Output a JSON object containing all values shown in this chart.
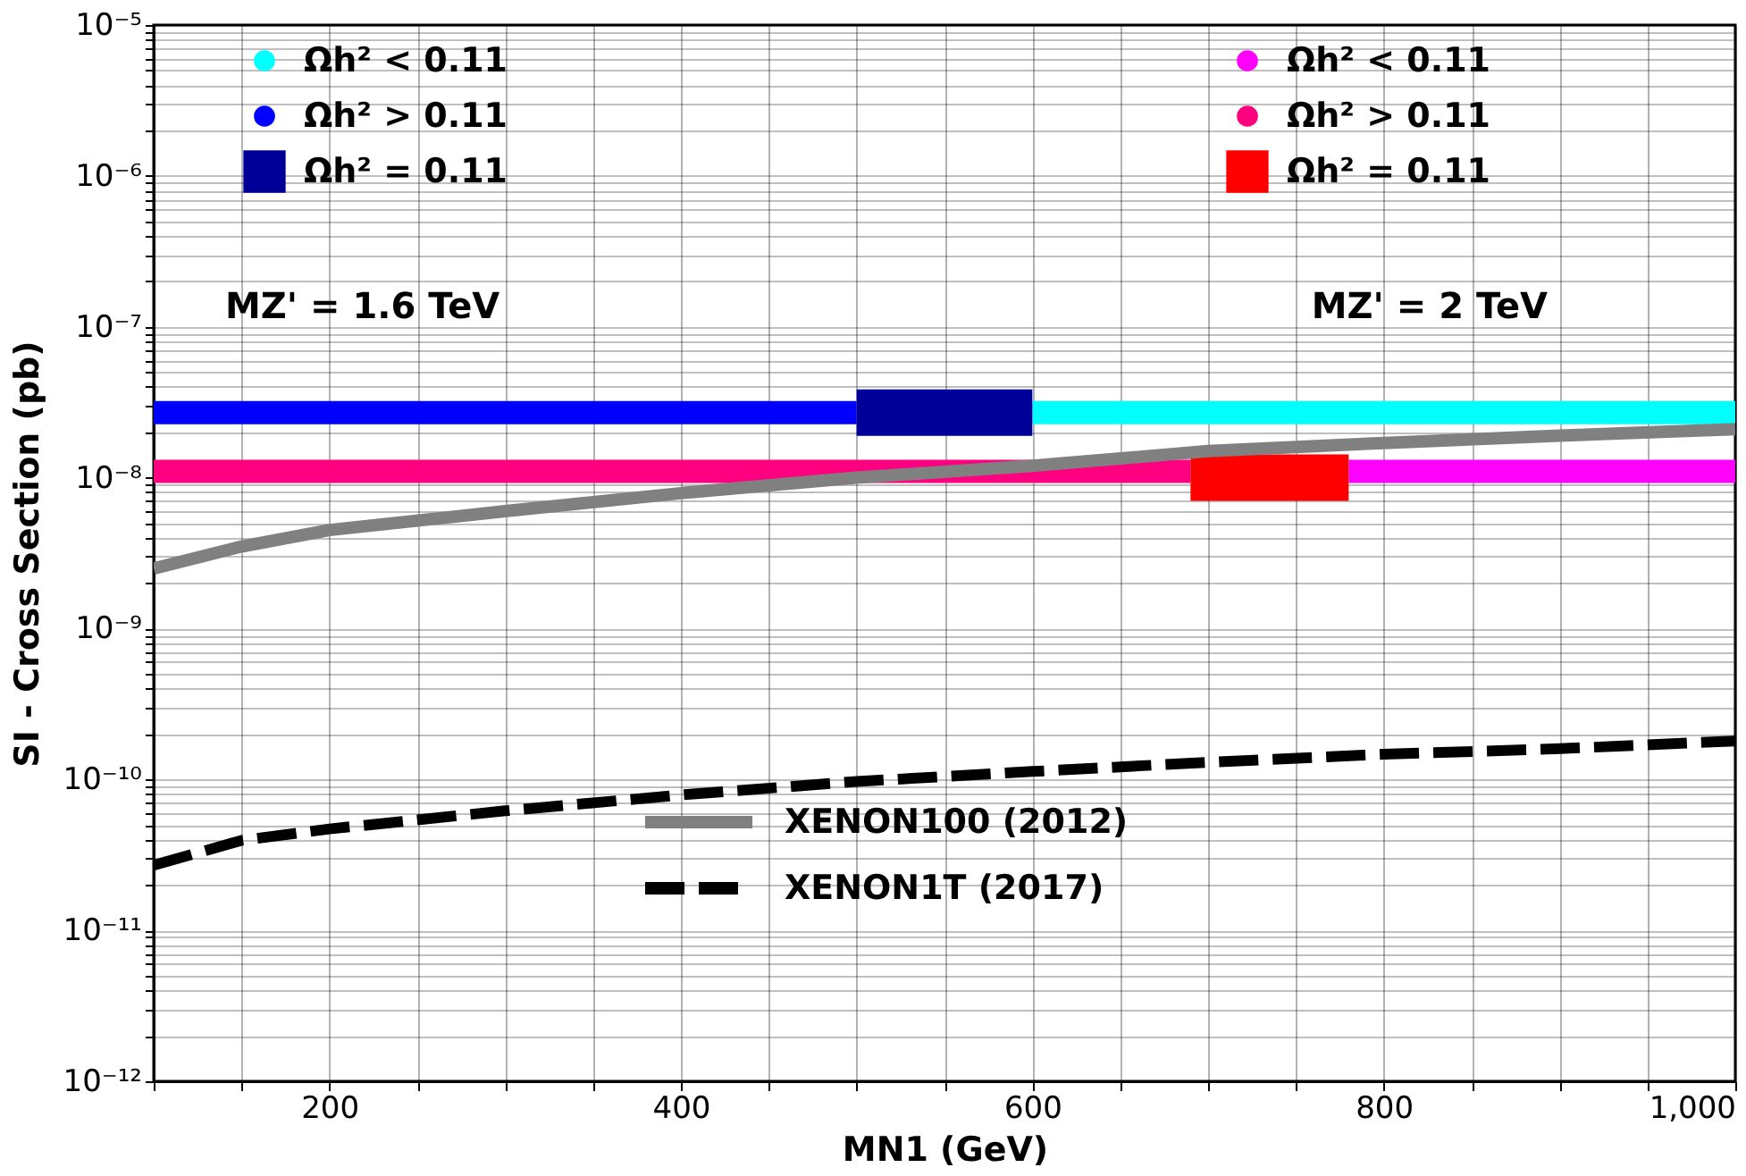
{
  "chart_data": {
    "type": "line",
    "xlabel": "MN1 (GeV)",
    "ylabel": "SI - Cross Section (pb)",
    "log": "y",
    "grid": true,
    "legend": "top",
    "xlim": [
      100,
      1000
    ],
    "ylim": [
      1e-12,
      1e-05
    ],
    "xticks": [
      {
        "value": 100,
        "label": null
      },
      {
        "value": 150,
        "label": null
      },
      200,
      {
        "value": 250,
        "label": null
      },
      {
        "value": 300,
        "label": null
      },
      {
        "value": 350,
        "label": null
      },
      400,
      {
        "value": 450,
        "label": null
      },
      {
        "value": 500,
        "label": null
      },
      {
        "value": 550,
        "label": null
      },
      600,
      {
        "value": 650,
        "label": null
      },
      {
        "value": 700,
        "label": null
      },
      {
        "value": 750,
        "label": null
      },
      800,
      {
        "value": 850,
        "label": null
      },
      {
        "value": 900,
        "label": null
      },
      {
        "value": 950,
        "label": null
      },
      {
        "value": 1000,
        "label": "1,000"
      }
    ],
    "yticks": [
      {
        "value": 1e-12,
        "label": "10⁻¹²"
      },
      {
        "value": 1e-11,
        "label": "10⁻¹¹"
      },
      {
        "value": 1e-10,
        "label": "10⁻¹⁰"
      },
      {
        "value": 1e-09,
        "label": "10⁻⁹"
      },
      {
        "value": 1e-08,
        "label": "10⁻⁸"
      },
      {
        "value": 1e-07,
        "label": "10⁻⁷"
      },
      {
        "value": 1e-06,
        "label": "10⁻⁶"
      },
      {
        "value": 1e-05,
        "label": "10⁻⁵"
      },
      {
        "value": 2e-12,
        "label": null
      },
      {
        "value": 3e-12,
        "label": null
      },
      {
        "value": 4e-12,
        "label": null
      },
      {
        "value": 5e-12,
        "label": null
      },
      {
        "value": 6e-12,
        "label": null
      },
      {
        "value": 7e-12,
        "label": null
      },
      {
        "value": 8e-12,
        "label": null
      },
      {
        "value": 9e-12,
        "label": null
      },
      {
        "value": 2e-11,
        "label": null
      },
      {
        "value": 3e-11,
        "label": null
      },
      {
        "value": 4e-11,
        "label": null
      },
      {
        "value": 5e-11,
        "label": null
      },
      {
        "value": 6e-11,
        "label": null
      },
      {
        "value": 7e-11,
        "label": null
      },
      {
        "value": 8e-11,
        "label": null
      },
      {
        "value": 9e-11,
        "label": null
      },
      {
        "value": 2e-10,
        "label": null
      },
      {
        "value": 3e-10,
        "label": null
      },
      {
        "value": 4e-10,
        "label": null
      },
      {
        "value": 5e-10,
        "label": null
      },
      {
        "value": 6e-10,
        "label": null
      },
      {
        "value": 7e-10,
        "label": null
      },
      {
        "value": 8e-10,
        "label": null
      },
      {
        "value": 9e-10,
        "label": null
      },
      {
        "value": 2e-09,
        "label": null
      },
      {
        "value": 3e-09,
        "label": null
      },
      {
        "value": 4e-09,
        "label": null
      },
      {
        "value": 5e-09,
        "label": null
      },
      {
        "value": 6e-09,
        "label": null
      },
      {
        "value": 7e-09,
        "label": null
      },
      {
        "value": 8e-09,
        "label": null
      },
      {
        "value": 9e-09,
        "label": null
      },
      {
        "value": 2e-08,
        "label": null
      },
      {
        "value": 3e-08,
        "label": null
      },
      {
        "value": 4e-08,
        "label": null
      },
      {
        "value": 5e-08,
        "label": null
      },
      {
        "value": 6e-08,
        "label": null
      },
      {
        "value": 7e-08,
        "label": null
      },
      {
        "value": 8e-08,
        "label": null
      },
      {
        "value": 9e-08,
        "label": null
      },
      {
        "value": 2e-07,
        "label": null
      },
      {
        "value": 3e-07,
        "label": null
      },
      {
        "value": 4e-07,
        "label": null
      },
      {
        "value": 5e-07,
        "label": null
      },
      {
        "value": 6e-07,
        "label": null
      },
      {
        "value": 7e-07,
        "label": null
      },
      {
        "value": 8e-07,
        "label": null
      },
      {
        "value": 9e-07,
        "label": null
      },
      {
        "value": 2e-06,
        "label": null
      },
      {
        "value": 3e-06,
        "label": null
      },
      {
        "value": 4e-06,
        "label": null
      },
      {
        "value": 5e-06,
        "label": null
      },
      {
        "value": 6e-06,
        "label": null
      },
      {
        "value": 7e-06,
        "label": null
      },
      {
        "value": 8e-06,
        "label": null
      },
      {
        "value": 9e-06,
        "label": null
      }
    ],
    "annotations": [
      "MZ' = 1.6 TeV",
      "MZ' = 2 TeV"
    ],
    "series": [
      {
        "name": "Ωh² < 0.11",
        "color": "#00ffff",
        "x": [
          600,
          1000
        ],
        "values": [
          2.7e-08,
          2.7e-08
        ]
      },
      {
        "name": "Ωh² > 0.11",
        "color": "#0000ff",
        "x": [
          100,
          500
        ],
        "values": [
          2.7e-08,
          2.7e-08
        ]
      },
      {
        "name": "Ωh² = 0.11",
        "color": "#000099",
        "x": [
          500,
          600
        ],
        "values": [
          2.7e-08,
          2.7e-08
        ]
      },
      {
        "name": "Ωh² < 0.11",
        "color": "#ff00ff",
        "x": [
          780,
          1000
        ],
        "values": [
          1.1e-08,
          1.1e-08
        ]
      },
      {
        "name": "Ωh² > 0.11",
        "color": "#ff0080",
        "x": [
          100,
          690
        ],
        "values": [
          1.1e-08,
          1.1e-08
        ]
      },
      {
        "name": "Ωh² = 0.11",
        "color": "#ff0000",
        "x": [
          690,
          780
        ],
        "values": [
          1e-08,
          1e-08
        ]
      },
      {
        "name": "XENON100 (2012)",
        "color": "#808080",
        "x": [
          100,
          150,
          200,
          300,
          400,
          500,
          600,
          700,
          800,
          900,
          1000
        ],
        "values": [
          2.5e-09,
          3.5e-09,
          4.5e-09,
          6e-09,
          7.9e-09,
          1e-08,
          1.2e-08,
          1.5e-08,
          1.7e-08,
          1.9e-08,
          2.1e-08
        ]
      },
      {
        "name": "XENON1T (2017)",
        "color": "#000000",
        "line_style": "dashed",
        "x": [
          100,
          150,
          200,
          300,
          400,
          500,
          600,
          700,
          800,
          900,
          1000
        ],
        "values": [
          2.7e-11,
          3.95e-11,
          4.7e-11,
          6.2e-11,
          7.9e-11,
          9.7e-11,
          1.13e-10,
          1.3e-10,
          1.47e-10,
          1.6e-10,
          1.8e-10
        ]
      }
    ]
  }
}
